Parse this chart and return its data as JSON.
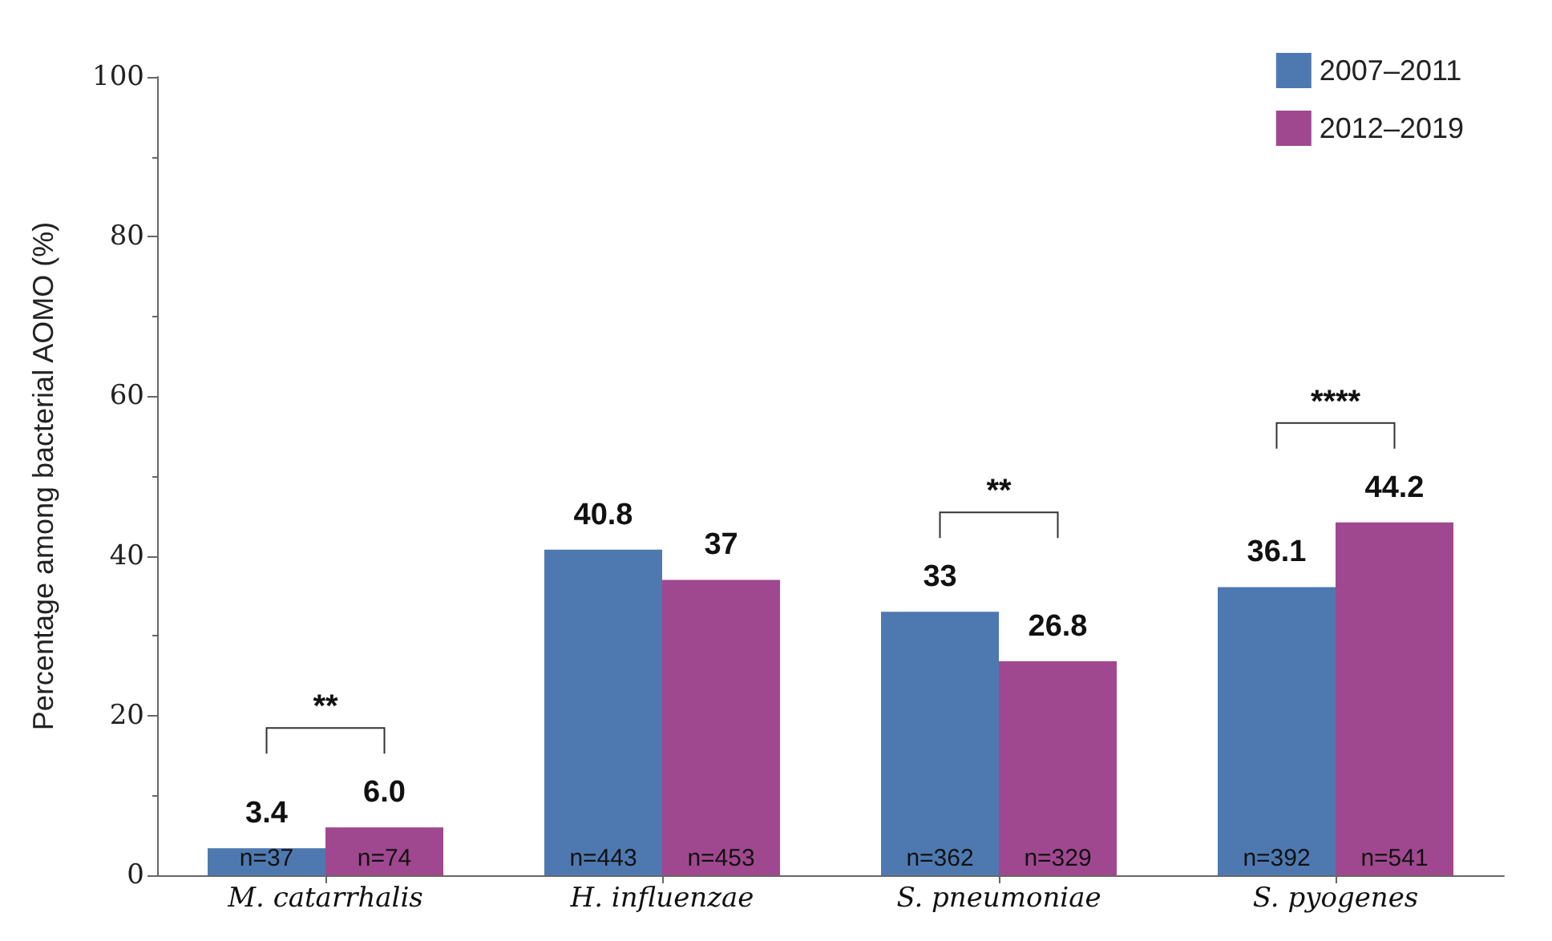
{
  "chart_data": {
    "type": "bar",
    "ylabel": "Percentage among bacterial AOMO (%)",
    "categories": [
      "M. catarrhalis",
      "H. influenzae",
      "S. pneumoniae",
      "S. pyogenes"
    ],
    "series": [
      {
        "name": "2007–2011",
        "color": "#4e79b0",
        "values": [
          3.4,
          40.8,
          33,
          36.1
        ],
        "value_labels": [
          "3.4",
          "40.8",
          "33",
          "36.1"
        ]
      },
      {
        "name": "2012–2019",
        "color": "#a0488f",
        "values": [
          6.0,
          37,
          26.8,
          44.2
        ],
        "value_labels": [
          "6.0",
          "37",
          "26.8",
          "44.2"
        ]
      }
    ],
    "ylim": [
      0,
      100
    ],
    "yticks": [
      0,
      20,
      40,
      60,
      80,
      100
    ],
    "grid": false,
    "legend": "top right",
    "annotations": [
      "**",
      "**",
      "****",
      "n=37",
      "n=74",
      "n=443",
      "n=453",
      "n=362",
      "n=329",
      "n=392",
      "n=541"
    ]
  }
}
